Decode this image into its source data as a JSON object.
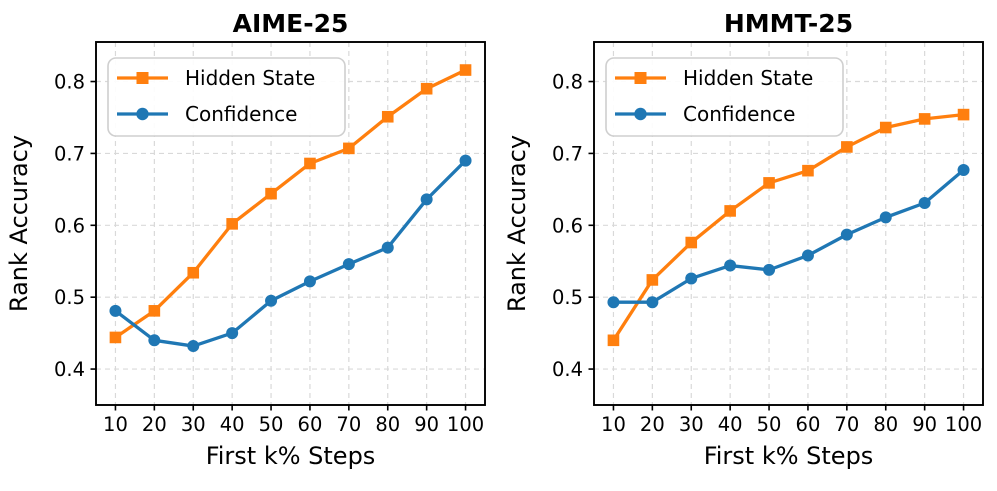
{
  "figure": {
    "background": "#ffffff",
    "spine_color": "#000000",
    "grid_color": "#d9d9d9",
    "tick_color": "#000000"
  },
  "chart_data": [
    {
      "type": "line",
      "title": "AIME-25",
      "xlabel": "First k% Steps",
      "ylabel": "Rank Accuracy",
      "x": [
        10,
        20,
        30,
        40,
        50,
        60,
        70,
        80,
        90,
        100
      ],
      "xtick_labels": [
        "10",
        "20",
        "30",
        "40",
        "50",
        "60",
        "70",
        "80",
        "90",
        "100"
      ],
      "yticks": [
        0.4,
        0.5,
        0.6,
        0.7,
        0.8
      ],
      "ytick_labels": [
        "0.4",
        "0.5",
        "0.6",
        "0.7",
        "0.8"
      ],
      "xlim": [
        5,
        105
      ],
      "ylim": [
        0.35,
        0.855
      ],
      "grid": true,
      "legend_position": "upper left",
      "series": [
        {
          "name": "Hidden State",
          "color": "#ff7f0e",
          "marker": "square",
          "values": [
            0.444,
            0.481,
            0.534,
            0.602,
            0.644,
            0.686,
            0.707,
            0.751,
            0.79,
            0.816
          ]
        },
        {
          "name": "Confidence",
          "color": "#1f77b4",
          "marker": "circle",
          "values": [
            0.481,
            0.44,
            0.432,
            0.45,
            0.495,
            0.522,
            0.546,
            0.569,
            0.636,
            0.69
          ]
        }
      ]
    },
    {
      "type": "line",
      "title": "HMMT-25",
      "xlabel": "First k% Steps",
      "ylabel": "Rank Accuracy",
      "x": [
        10,
        20,
        30,
        40,
        50,
        60,
        70,
        80,
        90,
        100
      ],
      "xtick_labels": [
        "10",
        "20",
        "30",
        "40",
        "50",
        "60",
        "70",
        "80",
        "90",
        "100"
      ],
      "yticks": [
        0.4,
        0.5,
        0.6,
        0.7,
        0.8
      ],
      "ytick_labels": [
        "0.4",
        "0.5",
        "0.6",
        "0.7",
        "0.8"
      ],
      "xlim": [
        5,
        105
      ],
      "ylim": [
        0.35,
        0.855
      ],
      "grid": true,
      "legend_position": "upper left",
      "series": [
        {
          "name": "Hidden State",
          "color": "#ff7f0e",
          "marker": "square",
          "values": [
            0.44,
            0.524,
            0.576,
            0.62,
            0.659,
            0.676,
            0.709,
            0.736,
            0.748,
            0.754
          ]
        },
        {
          "name": "Confidence",
          "color": "#1f77b4",
          "marker": "circle",
          "values": [
            0.493,
            0.493,
            0.526,
            0.544,
            0.538,
            0.558,
            0.587,
            0.611,
            0.631,
            0.677
          ]
        }
      ]
    }
  ]
}
